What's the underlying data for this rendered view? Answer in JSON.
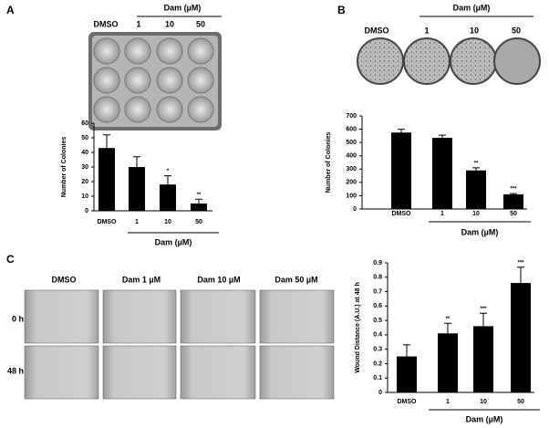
{
  "chart_data": [
    {
      "type": "bar",
      "y_label": "Number of Colonies",
      "x_group_label": "Dam (µM)",
      "categories": [
        "DMSO",
        "1",
        "10",
        "50"
      ],
      "values": [
        43,
        30,
        18,
        5
      ],
      "errors": [
        9,
        7,
        6,
        3
      ],
      "significance": [
        null,
        null,
        "*",
        "**"
      ],
      "color": "#000000",
      "ylim": [
        0,
        60
      ],
      "yticks": [
        0,
        10,
        20,
        30,
        40,
        50,
        60
      ]
    },
    {
      "type": "bar",
      "y_label": "Number of Colonies",
      "x_group_label": "Dam (µM)",
      "categories": [
        "DMSO",
        "1",
        "10",
        "50"
      ],
      "values": [
        575,
        535,
        290,
        110
      ],
      "errors": [
        25,
        20,
        20,
        6
      ],
      "significance": [
        null,
        null,
        "**",
        "***"
      ],
      "color": "#000000",
      "ylim": [
        0,
        700
      ],
      "yticks": [
        0,
        100,
        200,
        300,
        400,
        500,
        600,
        700
      ]
    },
    {
      "type": "bar",
      "y_label": "Wound Distance (A.U.) at 48 h",
      "x_group_label": "Dam (µM)",
      "categories": [
        "DMSO",
        "1",
        "10",
        "50"
      ],
      "values": [
        0.25,
        0.41,
        0.46,
        0.76
      ],
      "errors": [
        0.08,
        0.07,
        0.09,
        0.11
      ],
      "significance": [
        null,
        "**",
        "***",
        "***"
      ],
      "color": "#000000",
      "ylim": [
        0,
        0.9
      ],
      "yticks": [
        0,
        0.1,
        0.2,
        0.3,
        0.4,
        0.5,
        0.6,
        0.7,
        0.8,
        0.9
      ]
    }
  ],
  "panels": {
    "a": {
      "letter": "A",
      "group_label": "Dam (µM)",
      "columns": [
        "DMSO",
        "1",
        "10",
        "50"
      ]
    },
    "b": {
      "letter": "B",
      "group_label": "Dam (µM)",
      "columns": [
        "DMSO",
        "1",
        "10",
        "50"
      ]
    },
    "c": {
      "letter": "C",
      "columns": [
        "DMSO",
        "Dam 1 µM",
        "Dam 10 µM",
        "Dam 50 µM"
      ],
      "rows": [
        "0 h",
        "48 h"
      ]
    }
  }
}
